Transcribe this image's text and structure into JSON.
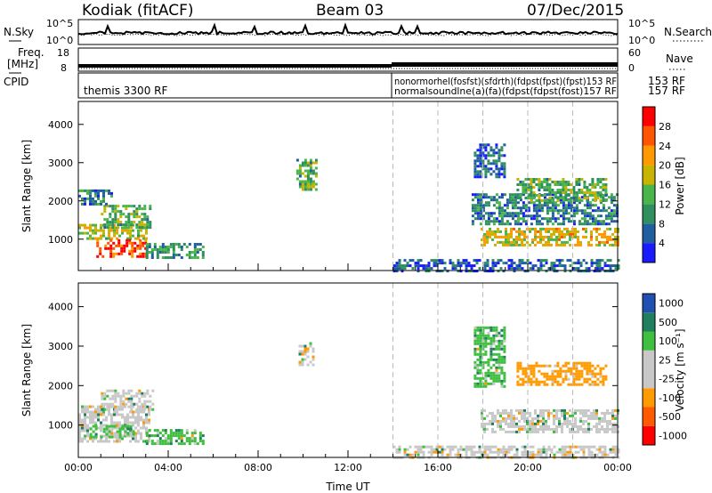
{
  "header": {
    "site": "Kodiak (fitACF)",
    "beam": "Beam 03",
    "date": "07/Dec/2015"
  },
  "noise_panel": {
    "left_label": "N.Sky",
    "right_label": "N.Search",
    "left_ticks": [
      "10^5",
      "10^0"
    ],
    "right_ticks": [
      "10^5",
      "10^0"
    ]
  },
  "freq_panel": {
    "left_label_1": "Freq.",
    "left_label_2": "[MHz]",
    "right_label": "Nave",
    "left_ticks": [
      "18",
      "8"
    ],
    "right_ticks": [
      "60",
      "0"
    ]
  },
  "cpid_panel": {
    "label": "CPID",
    "segment_1": "themis 3300 RF",
    "segment_2_line_1": "nonormorhel(fosfst)(sfdrth)(fdpst(fpst)(fpst)153 RF",
    "segment_2_line_2": "normalsoundlne(a)(fa)(fdpst(fdpst(fost)157 RF",
    "trailing_1": "153 RF",
    "trailing_2": "157 RF"
  },
  "colors": {
    "power": [
      "#1a1aff",
      "#1f5fa0",
      "#2f8f5f",
      "#4ab54a",
      "#c8b400",
      "#ff9900",
      "#ff5500",
      "#ff0000"
    ],
    "velocity": [
      "#ff0000",
      "#ff5a00",
      "#ff9a00",
      "#c8c8c8",
      "#c8c8c8",
      "#3fbf3f",
      "#1f7f5f",
      "#2050b0"
    ],
    "grid_line": "#bbbbbb"
  },
  "chart_data": [
    {
      "type": "heatmap",
      "name": "power",
      "ylabel": "Slant Range [km]",
      "yticks": [
        1000,
        2000,
        3000,
        4000
      ],
      "ylim": [
        180,
        4600
      ],
      "xlim_hours": [
        0,
        24
      ],
      "colorbar_label": "Power [dB]",
      "colorbar_ticks": [
        "4",
        "8",
        "12",
        "16",
        "20",
        "24",
        "28"
      ],
      "colorbar_range": [
        0,
        30
      ],
      "regions": [
        {
          "t0": 0.0,
          "t1": 3.0,
          "r0": 1000,
          "r1": 1400,
          "value": 16
        },
        {
          "t0": 0.8,
          "t1": 3.0,
          "r0": 550,
          "r1": 1000,
          "value": 26
        },
        {
          "t0": 1.0,
          "t1": 3.2,
          "r0": 1300,
          "r1": 1900,
          "value": 12
        },
        {
          "t0": 0.0,
          "t1": 1.5,
          "r0": 1900,
          "r1": 2300,
          "value": 8
        },
        {
          "t0": 3.0,
          "t1": 5.5,
          "r0": 500,
          "r1": 900,
          "value": 10
        },
        {
          "t0": 9.7,
          "t1": 10.6,
          "r0": 2300,
          "r1": 3100,
          "value": 12
        },
        {
          "t0": 14.0,
          "t1": 24.0,
          "r0": 180,
          "r1": 480,
          "value": 6
        },
        {
          "t0": 17.9,
          "t1": 24.0,
          "r0": 850,
          "r1": 1300,
          "value": 18
        },
        {
          "t0": 17.5,
          "t1": 24.0,
          "r0": 1400,
          "r1": 2200,
          "value": 8
        },
        {
          "t0": 19.5,
          "t1": 23.5,
          "r0": 2000,
          "r1": 2600,
          "value": 12
        },
        {
          "t0": 17.6,
          "t1": 19.0,
          "r0": 2600,
          "r1": 3500,
          "value": 6
        }
      ]
    },
    {
      "type": "heatmap",
      "name": "velocity",
      "ylabel": "Slant Range [km]",
      "xlabel": "Time UT",
      "xticks": [
        "00:00",
        "04:00",
        "08:00",
        "12:00",
        "16:00",
        "20:00",
        "00:00"
      ],
      "xtick_hours": [
        0,
        4,
        8,
        12,
        16,
        20,
        24
      ],
      "yticks": [
        1000,
        2000,
        3000,
        4000
      ],
      "ylim": [
        180,
        4600
      ],
      "xlim_hours": [
        0,
        24
      ],
      "colorbar_label": "Velocity [m s⁻¹]",
      "colorbar_ticks": [
        "1000",
        "500",
        "100",
        "25",
        "-25",
        "-100",
        "-500",
        "-1000"
      ],
      "regions": [
        {
          "t0": 0.0,
          "t1": 3.2,
          "r0": 600,
          "r1": 1500,
          "value": 0
        },
        {
          "t0": 1.0,
          "t1": 3.3,
          "r0": 1400,
          "r1": 1900,
          "value": 0
        },
        {
          "t0": 0.5,
          "t1": 2.5,
          "r0": 700,
          "r1": 1000,
          "value": 50
        },
        {
          "t0": 3.0,
          "t1": 5.5,
          "r0": 500,
          "r1": 900,
          "value": 60
        },
        {
          "t0": 9.8,
          "t1": 10.5,
          "r0": 2500,
          "r1": 3100,
          "value": 0
        },
        {
          "t0": 14.0,
          "t1": 24.0,
          "r0": 180,
          "r1": 480,
          "value": -50
        },
        {
          "t0": 17.9,
          "t1": 24.0,
          "r0": 850,
          "r1": 1400,
          "value": 0
        },
        {
          "t0": 19.5,
          "t1": 23.5,
          "r0": 2000,
          "r1": 2600,
          "value": -200
        },
        {
          "t0": 17.6,
          "t1": 19.0,
          "r0": 2000,
          "r1": 3500,
          "value": 60
        }
      ]
    }
  ]
}
